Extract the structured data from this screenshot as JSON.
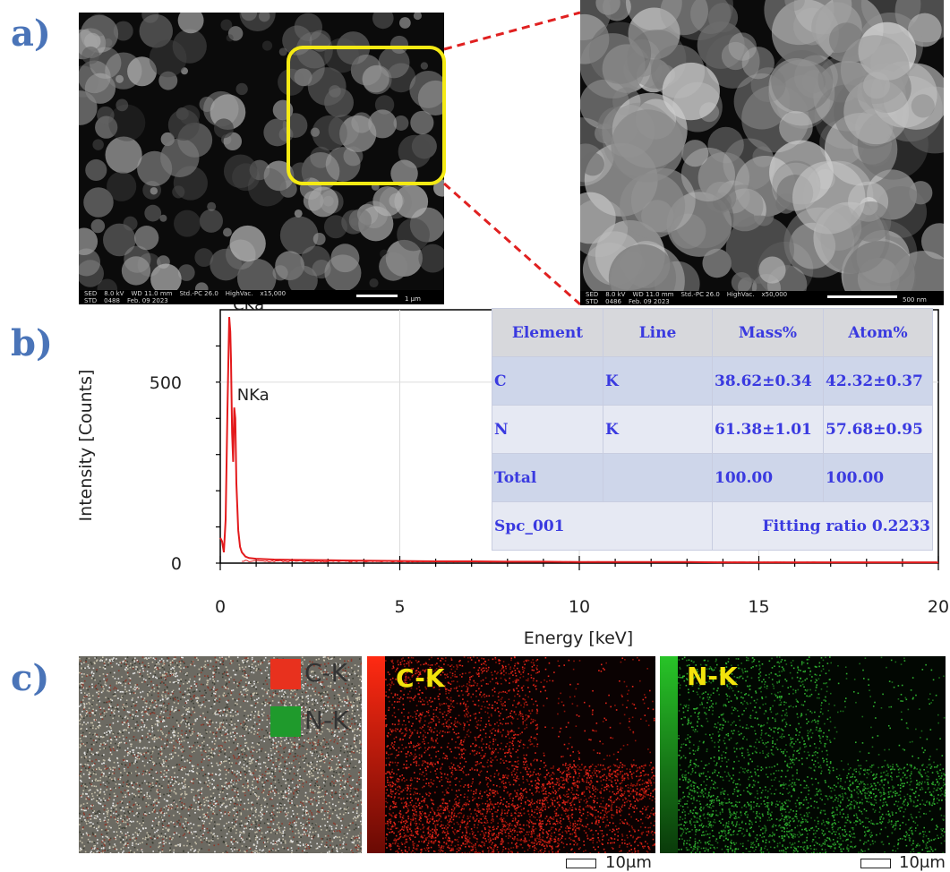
{
  "panels": {
    "a": "a)",
    "b": "b)",
    "c": "c)"
  },
  "sem_left": {
    "info": [
      "SED",
      "8.0 kV",
      "WD 11.0 mm",
      "Std.-PC 26.0",
      "HighVac.",
      "x15,000"
    ],
    "info2": [
      "STD",
      "0488",
      "Feb. 09 2023"
    ],
    "scale": "1 µm"
  },
  "sem_right": {
    "info": [
      "SED",
      "8.0 kV",
      "WD 11.0 mm",
      "Std.-PC 26.0",
      "HighVac.",
      "x50,000"
    ],
    "info2": [
      "STD",
      "0486",
      "Feb. 09 2023"
    ],
    "scale": "500 nm"
  },
  "chart_data": {
    "type": "line",
    "xlabel": "Energy [keV]",
    "ylabel": "Intensity [Counts]",
    "xlim": [
      0,
      20
    ],
    "ylim": [
      0,
      700
    ],
    "xticks": [
      0,
      5,
      10,
      15,
      20
    ],
    "yticks": [
      0,
      500
    ],
    "series": [
      {
        "color": "#e31a1c",
        "x": [
          0,
          0.05,
          0.1,
          0.15,
          0.2,
          0.25,
          0.28,
          0.3,
          0.33,
          0.36,
          0.39,
          0.42,
          0.45,
          0.5,
          0.55,
          0.6,
          0.7,
          0.8,
          1.0,
          1.5,
          2,
          3,
          4,
          5,
          6,
          7,
          8,
          9,
          10,
          11,
          12,
          13,
          14,
          15,
          16,
          17,
          18,
          19,
          20
        ],
        "y": [
          70,
          60,
          30,
          120,
          420,
          680,
          640,
          560,
          360,
          280,
          430,
          400,
          220,
          90,
          45,
          30,
          18,
          14,
          12,
          10,
          9,
          8,
          7,
          6,
          5,
          5,
          4,
          4,
          3,
          3,
          3,
          3,
          2,
          2,
          2,
          2,
          2,
          2,
          2
        ]
      }
    ],
    "annotations": [
      {
        "text": "CKa",
        "x": 0.277,
        "y": 680
      },
      {
        "text": "NKa",
        "x": 0.392,
        "y": 430
      }
    ],
    "grid": true
  },
  "table": {
    "headers": [
      "Element",
      "Line",
      "Mass%",
      "Atom%"
    ],
    "rows": [
      [
        "C",
        "K",
        "38.62±0.34",
        "42.32±0.37"
      ],
      [
        "N",
        "K",
        "61.38±1.01",
        "57.68±0.95"
      ],
      [
        "Total",
        "",
        "100.00",
        "100.00"
      ]
    ],
    "footer_left": "Spc_001",
    "footer_right": "Fitting ratio 0.2233"
  },
  "maps": {
    "legend": [
      {
        "label": "C-K",
        "color": "#e8311e"
      },
      {
        "label": "N-K",
        "color": "#1f9a2c"
      }
    ],
    "ck_title": "C-K",
    "nk_title": "N-K",
    "scale_label": "10μm"
  },
  "colors": {
    "ck": "#e02020",
    "nk": "#2fa82f",
    "highlight": "#f5ea14",
    "connector": "#e02020"
  }
}
